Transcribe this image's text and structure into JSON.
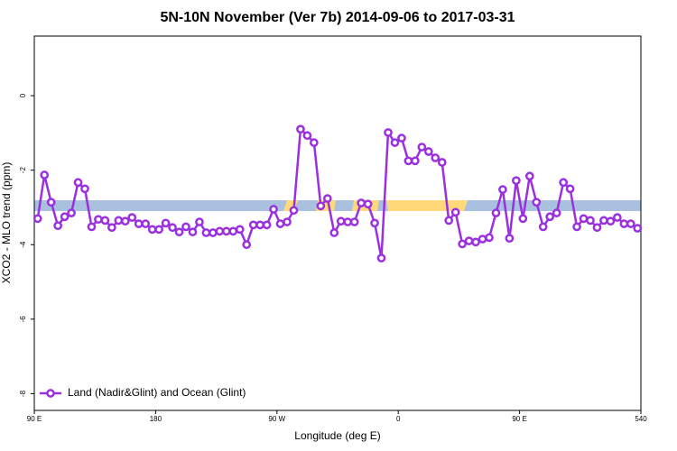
{
  "chart_data": {
    "type": "line",
    "title": "5N-10N November (Ver 7b)   2014-09-06 to 2017-03-31",
    "x_label": "Longitude (deg E)",
    "y_label": "XCO2 - MLO trend (ppm)",
    "xlim": [
      90,
      540
    ],
    "ylim": [
      -8.45,
      1.6
    ],
    "xticks": [
      {
        "value": 90,
        "label": "90 E"
      },
      180,
      {
        "value": 270,
        "label": "90 W"
      },
      {
        "value": 360,
        "label": "0"
      },
      {
        "value": 450,
        "label": "90 E"
      },
      540
    ],
    "yticks": [
      0,
      -2,
      -4,
      -6,
      -8
    ],
    "legend": "bottomleft",
    "x": [
      92.5,
      97.5,
      102.5,
      107.5,
      112.5,
      117.5,
      122.5,
      127.5,
      132.5,
      137.5,
      142.5,
      147.5,
      152.5,
      157.5,
      162.5,
      167.5,
      172.5,
      177.5,
      182.5,
      187.5,
      192.5,
      197.5,
      202.5,
      207.5,
      212.5,
      217.5,
      222.5,
      227.5,
      232.5,
      237.5,
      242.5,
      247.5,
      252.5,
      257.5,
      262.5,
      267.5,
      272.5,
      277.5,
      282.5,
      287.5,
      292.5,
      297.5,
      302.5,
      307.5,
      312.5,
      317.5,
      322.5,
      327.5,
      332.5,
      337.5,
      342.5,
      347.5,
      352.5,
      357.5,
      362.5,
      367.5,
      372.5,
      377.5,
      382.5,
      387.5,
      392.5,
      397.5,
      402.5,
      407.5,
      412.5,
      417.5,
      422.5,
      427.5,
      432.5,
      437.5,
      442.5,
      447.5,
      452.5,
      457.5,
      462.5,
      467.5,
      472.5,
      477.5,
      482.5,
      487.5,
      492.5,
      497.5,
      502.5,
      507.5,
      512.5,
      517.5,
      522.5,
      527.5,
      532.5,
      537.5
    ],
    "series": [
      {
        "name": "Land (Nadir&Glint) and Ocean (Glint)",
        "color": "#9b30e0",
        "values": [
          -3.3,
          -2.13,
          -2.86,
          -3.49,
          -3.25,
          -3.15,
          -2.33,
          -2.5,
          -3.52,
          -3.32,
          -3.35,
          -3.54,
          -3.35,
          -3.37,
          -3.27,
          -3.44,
          -3.44,
          -3.59,
          -3.59,
          -3.42,
          -3.54,
          -3.66,
          -3.52,
          -3.66,
          -3.39,
          -3.68,
          -3.68,
          -3.64,
          -3.64,
          -3.64,
          -3.59,
          -4.0,
          -3.47,
          -3.47,
          -3.47,
          -3.05,
          -3.44,
          -3.39,
          -3.08,
          -0.9,
          -1.07,
          -1.26,
          -2.96,
          -2.76,
          -3.68,
          -3.37,
          -3.39,
          -3.39,
          -2.88,
          -2.91,
          -3.42,
          -4.36,
          -0.99,
          -1.26,
          -1.14,
          -1.75,
          -1.75,
          -1.38,
          -1.5,
          -1.67,
          -1.79,
          -3.35,
          -3.13,
          -3.98,
          -3.9,
          -3.93,
          -3.85,
          -3.81,
          -3.15,
          -2.52,
          -3.83,
          -2.28,
          -3.3,
          -2.16,
          -2.86,
          -3.52,
          -3.25,
          -3.15,
          -2.33,
          -2.5,
          -3.52,
          -3.3,
          -3.35,
          -3.54,
          -3.35,
          -3.37,
          -3.27,
          -3.44,
          -3.44,
          -3.56
        ]
      }
    ]
  }
}
